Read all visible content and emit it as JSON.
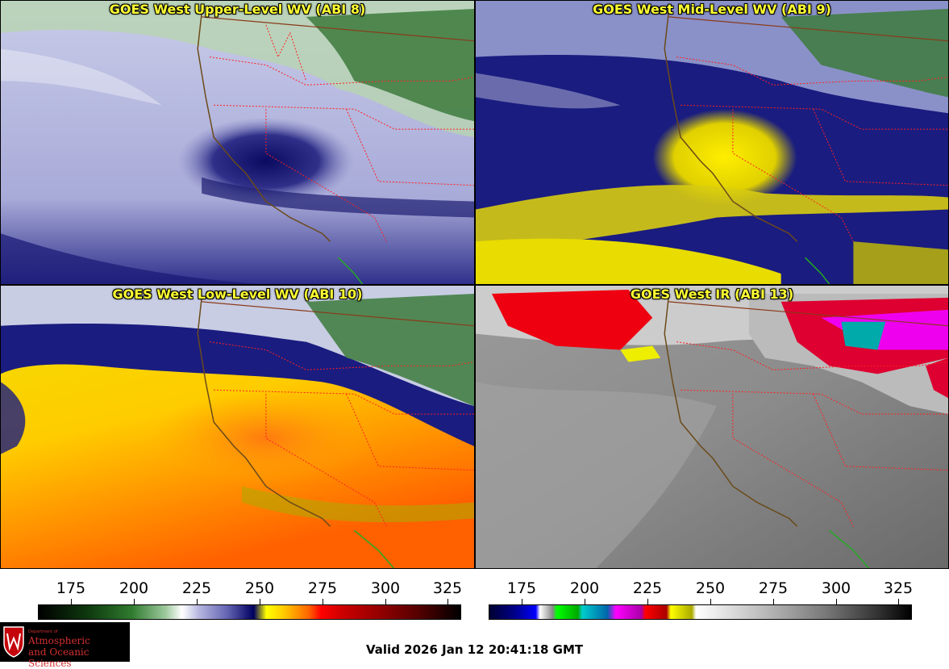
{
  "panels": [
    {
      "title": "GOES West Upper-Level WV (ABI 8)"
    },
    {
      "title": "GOES West Mid-Level WV (ABI 9)"
    },
    {
      "title": "GOES West Low-Level WV (ABI 10)"
    },
    {
      "title": "GOES West IR (ABI 13)"
    }
  ],
  "colorbars": [
    {
      "ticks": [
        "175",
        "200",
        "225",
        "250",
        "275",
        "300",
        "325"
      ]
    },
    {
      "ticks": [
        "175",
        "200",
        "225",
        "250",
        "275",
        "300",
        "325"
      ]
    }
  ],
  "logo": {
    "dept": "Department of",
    "line1": "Atmospheric",
    "line2": "and Oceanic Sciences"
  },
  "valid": "Valid 2026 Jan 12 20:41:18 GMT",
  "colors": {
    "title": "#ffff33",
    "state_borders": "#ff2020",
    "coastline": "#6b4a1a",
    "mexico_border": "#22aa22"
  }
}
